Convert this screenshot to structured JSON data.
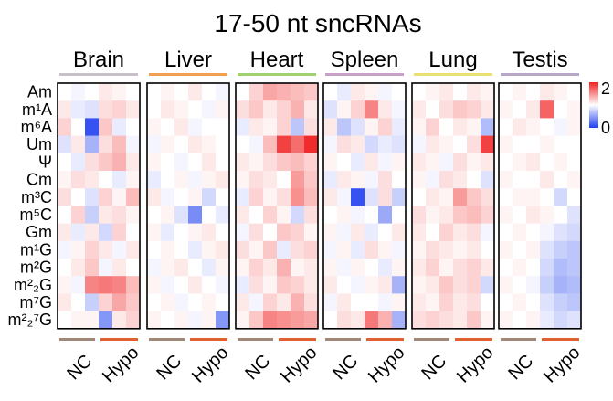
{
  "chart_data": {
    "type": "heatmap",
    "title": "17-50 nt sncRNAs",
    "tissues": [
      "Brain",
      "Liver",
      "Heart",
      "Spleen",
      "Lung",
      "Testis"
    ],
    "tissue_colors": [
      "#c8c0c8",
      "#f0a050",
      "#a0d070",
      "#c8a0c8",
      "#e8e070",
      "#b8a8c8"
    ],
    "group_labels": [
      "NC",
      "Hypo"
    ],
    "group_colors": {
      "NC": "#a08878",
      "Hypo": "#e06030"
    },
    "rows": [
      "Am",
      "m¹A",
      "m⁶A",
      "Um",
      "Ψ",
      "Cm",
      "m³C",
      "m⁵C",
      "Gm",
      "m¹G",
      "m²G",
      "m²₂G",
      "m⁷G",
      "m²₂⁷G"
    ],
    "colorbar": {
      "min": 0,
      "max": 2,
      "tick_labels": [
        "2",
        "0"
      ],
      "low_color": "#2040f0",
      "mid_color": "#ffffff",
      "high_color": "#f02020"
    },
    "panels": [
      {
        "tissue": "Brain",
        "values": [
          [
            1.0,
            0.95,
            1.0,
            1.1,
            1.05,
            1.0
          ],
          [
            1.1,
            0.9,
            0.85,
            1.15,
            1.2,
            1.1
          ],
          [
            1.2,
            1.0,
            0.1,
            1.25,
            0.9,
            1.0
          ],
          [
            0.85,
            1.1,
            0.6,
            1.15,
            1.3,
            0.95
          ],
          [
            1.0,
            0.9,
            1.15,
            1.25,
            1.35,
            1.1
          ],
          [
            1.05,
            1.15,
            1.1,
            1.0,
            0.9,
            1.05
          ],
          [
            1.15,
            1.0,
            0.85,
            1.2,
            1.05,
            1.3
          ],
          [
            1.0,
            1.2,
            0.75,
            1.1,
            1.15,
            1.05
          ],
          [
            1.1,
            0.9,
            1.1,
            0.8,
            1.2,
            1.0
          ],
          [
            0.95,
            1.05,
            1.2,
            1.1,
            0.95,
            1.1
          ],
          [
            1.0,
            1.1,
            1.25,
            0.95,
            1.1,
            1.0
          ],
          [
            1.05,
            0.95,
            1.55,
            1.6,
            1.55,
            1.3
          ],
          [
            1.1,
            1.0,
            0.75,
            1.2,
            1.4,
            1.25
          ],
          [
            1.0,
            1.05,
            1.05,
            0.45,
            1.1,
            1.2
          ]
        ]
      },
      {
        "tissue": "Liver",
        "values": [
          [
            1.0,
            1.05,
            1.0,
            1.1,
            1.0,
            0.95
          ],
          [
            1.0,
            1.1,
            1.05,
            1.0,
            0.95,
            1.05
          ],
          [
            1.05,
            1.0,
            1.1,
            0.95,
            1.0,
            1.0
          ],
          [
            0.95,
            1.05,
            1.0,
            1.1,
            1.05,
            1.0
          ],
          [
            1.05,
            1.0,
            0.95,
            1.0,
            1.1,
            1.0
          ],
          [
            0.9,
            1.0,
            1.05,
            0.95,
            1.05,
            1.1
          ],
          [
            1.1,
            0.95,
            1.0,
            1.05,
            0.8,
            1.0
          ],
          [
            1.0,
            1.05,
            0.85,
            0.4,
            1.0,
            0.9
          ],
          [
            1.05,
            0.9,
            1.0,
            1.05,
            1.1,
            1.0
          ],
          [
            1.0,
            1.05,
            1.0,
            0.9,
            1.05,
            1.1
          ],
          [
            0.95,
            1.05,
            1.1,
            1.0,
            0.9,
            1.05
          ],
          [
            1.05,
            0.95,
            1.0,
            1.1,
            1.0,
            0.95
          ],
          [
            1.0,
            1.05,
            0.95,
            1.0,
            1.05,
            1.0
          ],
          [
            1.05,
            1.0,
            1.05,
            0.95,
            1.05,
            0.45
          ]
        ]
      },
      {
        "tissue": "Heart",
        "values": [
          [
            1.0,
            1.2,
            1.4,
            1.35,
            1.3,
            1.25
          ],
          [
            1.15,
            1.25,
            1.1,
            1.2,
            1.35,
            1.1
          ],
          [
            0.9,
            1.1,
            1.05,
            1.2,
            0.7,
            1.15
          ],
          [
            1.0,
            0.95,
            1.3,
            1.85,
            1.65,
            1.95
          ],
          [
            1.1,
            1.05,
            1.15,
            1.25,
            1.3,
            1.2
          ],
          [
            1.05,
            1.15,
            1.1,
            1.0,
            1.45,
            1.25
          ],
          [
            0.9,
            1.2,
            1.05,
            1.15,
            1.5,
            1.3
          ],
          [
            1.1,
            1.0,
            1.2,
            1.05,
            0.8,
            1.15
          ],
          [
            0.95,
            1.15,
            1.0,
            1.25,
            1.2,
            1.05
          ],
          [
            1.15,
            1.05,
            1.25,
            0.9,
            1.15,
            1.2
          ],
          [
            1.05,
            1.2,
            1.1,
            1.35,
            1.05,
            1.1
          ],
          [
            0.9,
            1.15,
            1.05,
            1.25,
            1.2,
            1.1
          ],
          [
            1.1,
            0.95,
            1.2,
            1.1,
            1.35,
            1.15
          ],
          [
            1.05,
            1.25,
            1.55,
            1.5,
            1.45,
            1.4
          ]
        ]
      },
      {
        "tissue": "Spleen",
        "values": [
          [
            1.0,
            0.9,
            1.1,
            1.05,
            0.95,
            1.0
          ],
          [
            0.85,
            1.05,
            1.2,
            1.55,
            1.1,
            0.95
          ],
          [
            1.1,
            0.7,
            0.85,
            1.05,
            1.2,
            0.9
          ],
          [
            0.95,
            1.15,
            1.1,
            0.8,
            0.9,
            0.85
          ],
          [
            1.05,
            1.0,
            0.9,
            1.1,
            0.95,
            1.05
          ],
          [
            0.9,
            1.1,
            1.05,
            0.95,
            1.15,
            1.0
          ],
          [
            1.1,
            0.95,
            0.1,
            0.85,
            1.15,
            0.75
          ],
          [
            1.0,
            1.05,
            0.95,
            1.0,
            0.55,
            1.0
          ],
          [
            1.05,
            0.95,
            1.1,
            0.9,
            1.0,
            1.1
          ],
          [
            0.95,
            1.05,
            0.9,
            1.15,
            1.05,
            0.95
          ],
          [
            1.05,
            0.95,
            1.05,
            1.0,
            0.9,
            1.05
          ],
          [
            1.1,
            1.0,
            0.95,
            1.05,
            1.1,
            0.6
          ],
          [
            0.95,
            1.1,
            1.0,
            1.0,
            0.95,
            1.05
          ],
          [
            1.0,
            1.15,
            1.1,
            1.6,
            1.35,
            0.6
          ]
        ]
      },
      {
        "tissue": "Lung",
        "values": [
          [
            1.0,
            1.05,
            1.1,
            1.0,
            1.1,
            1.05
          ],
          [
            1.1,
            1.0,
            1.15,
            1.25,
            1.2,
            1.1
          ],
          [
            1.05,
            1.2,
            1.0,
            1.1,
            1.05,
            0.65
          ],
          [
            0.95,
            1.1,
            1.05,
            1.0,
            1.15,
            1.85
          ],
          [
            1.1,
            1.05,
            0.95,
            1.15,
            1.05,
            1.1
          ],
          [
            1.05,
            0.95,
            1.15,
            1.1,
            1.0,
            0.85
          ],
          [
            1.0,
            1.1,
            1.05,
            1.45,
            1.25,
            1.15
          ],
          [
            1.15,
            1.05,
            1.1,
            1.25,
            1.3,
            1.2
          ],
          [
            1.1,
            1.0,
            1.2,
            1.1,
            1.15,
            0.95
          ],
          [
            1.05,
            1.15,
            1.1,
            1.05,
            1.1,
            1.0
          ],
          [
            1.1,
            1.2,
            1.05,
            1.15,
            1.2,
            1.1
          ],
          [
            1.05,
            1.1,
            1.25,
            1.15,
            1.2,
            0.8
          ],
          [
            1.1,
            1.05,
            1.2,
            1.1,
            1.15,
            1.0
          ],
          [
            1.15,
            1.2,
            1.15,
            1.1,
            1.25,
            1.05
          ]
        ]
      },
      {
        "tissue": "Testis",
        "values": [
          [
            1.0,
            1.05,
            1.0,
            1.1,
            1.05,
            1.0
          ],
          [
            1.05,
            1.0,
            1.1,
            1.7,
            1.0,
            1.05
          ],
          [
            1.0,
            1.1,
            1.05,
            1.0,
            0.95,
            1.05
          ],
          [
            1.05,
            1.0,
            1.0,
            1.05,
            1.0,
            1.0
          ],
          [
            1.0,
            1.05,
            1.1,
            1.0,
            1.05,
            1.0
          ],
          [
            1.05,
            1.0,
            1.0,
            1.1,
            1.0,
            1.05
          ],
          [
            1.0,
            1.05,
            1.05,
            1.0,
            0.8,
            1.0
          ],
          [
            1.05,
            1.0,
            1.1,
            1.05,
            1.0,
            0.85
          ],
          [
            1.0,
            1.05,
            1.0,
            0.95,
            0.85,
            0.8
          ],
          [
            1.05,
            1.0,
            1.05,
            0.85,
            0.75,
            0.7
          ],
          [
            1.0,
            1.05,
            1.0,
            0.8,
            0.65,
            0.7
          ],
          [
            1.05,
            1.0,
            0.95,
            0.75,
            0.6,
            0.65
          ],
          [
            1.0,
            1.05,
            1.0,
            0.85,
            0.75,
            0.7
          ],
          [
            1.05,
            1.0,
            1.05,
            0.9,
            0.8,
            0.85
          ]
        ]
      }
    ]
  }
}
